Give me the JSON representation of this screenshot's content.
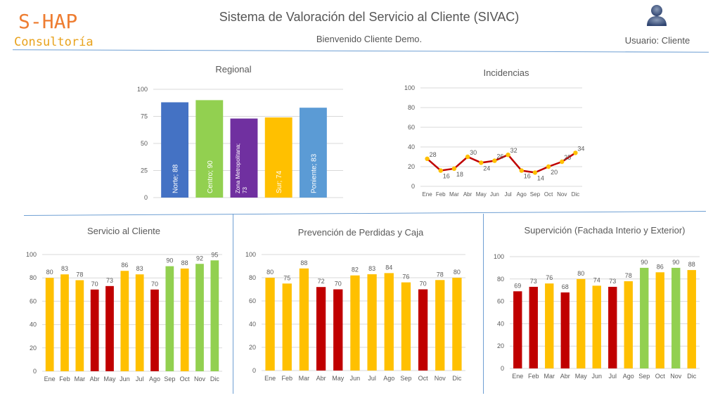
{
  "header": {
    "logo_main": "S-HAP",
    "logo_sub": "Consultoría",
    "title": "Sistema de Valoración del Servicio al Cliente (SIVAC)",
    "welcome": "Bienvenido Cliente Demo.",
    "user_label": "Usuario: Cliente",
    "user_icon": "user-avatar-icon"
  },
  "colors": {
    "red": "#c00000",
    "yellow": "#ffc000",
    "green": "#92d050",
    "blue": "#4472c4",
    "lightblue": "#5b9bd5",
    "purple": "#7030a0",
    "line": "#c00000",
    "marker": "#ffc000",
    "divider": "#6e9fd3"
  },
  "chart_data": [
    {
      "id": "regional",
      "type": "bar",
      "title": "Regional",
      "categories": [
        "Norte",
        "Centro",
        "Zona Metropolitana",
        "Sur",
        "Poniente"
      ],
      "values": [
        88,
        90,
        73,
        74,
        83
      ],
      "bar_labels": [
        "Norte; 88",
        "Centro; 90",
        "Zona Metropolitana; 73",
        "Sur; 74",
        "Poniente; 83"
      ],
      "bar_colors": [
        "blue",
        "green",
        "purple",
        "yellow",
        "lightblue"
      ],
      "ylim": [
        0,
        100
      ],
      "yticks": [
        0,
        25,
        50,
        75,
        100
      ],
      "grid": true
    },
    {
      "id": "incidencias",
      "type": "line",
      "title": "Incidencias",
      "categories": [
        "Ene",
        "Feb",
        "Mar",
        "Abr",
        "May",
        "Jun",
        "Jul",
        "Ago",
        "Sep",
        "Oct",
        "Nov",
        "Dic"
      ],
      "values": [
        28,
        16,
        18,
        30,
        24,
        26,
        32,
        16,
        14,
        20,
        25,
        34
      ],
      "ylim": [
        0,
        100
      ],
      "yticks": [
        0,
        20,
        40,
        60,
        80,
        100
      ],
      "grid": true
    },
    {
      "id": "servicio",
      "type": "bar",
      "title": "Servicio al Cliente",
      "categories": [
        "Ene",
        "Feb",
        "Mar",
        "Abr",
        "May",
        "Jun",
        "Jul",
        "Ago",
        "Sep",
        "Oct",
        "Nov",
        "Dic"
      ],
      "values": [
        80,
        83,
        78,
        70,
        73,
        86,
        83,
        70,
        90,
        88,
        92,
        95
      ],
      "bar_colors": [
        "yellow",
        "yellow",
        "yellow",
        "red",
        "red",
        "yellow",
        "yellow",
        "red",
        "green",
        "yellow",
        "green",
        "green"
      ],
      "ylim": [
        0,
        100
      ],
      "yticks": [
        0,
        20,
        40,
        60,
        80,
        100
      ],
      "grid": true
    },
    {
      "id": "prevencion",
      "type": "bar",
      "title": "Prevención de Perdidas y Caja",
      "categories": [
        "Ene",
        "Feb",
        "Mar",
        "Abr",
        "May",
        "Jun",
        "Jul",
        "Ago",
        "Sep",
        "Oct",
        "Nov",
        "Dic"
      ],
      "values": [
        80,
        75,
        88,
        72,
        70,
        82,
        83,
        84,
        76,
        70,
        78,
        80
      ],
      "bar_colors": [
        "yellow",
        "yellow",
        "yellow",
        "red",
        "red",
        "yellow",
        "yellow",
        "yellow",
        "yellow",
        "red",
        "yellow",
        "yellow"
      ],
      "ylim": [
        0,
        100
      ],
      "yticks": [
        0,
        20,
        40,
        60,
        80,
        100
      ],
      "grid": true
    },
    {
      "id": "supervicion",
      "type": "bar",
      "title": "Supervición (Fachada Interio y Exterior)",
      "categories": [
        "Ene",
        "Feb",
        "Mar",
        "Abr",
        "May",
        "Jun",
        "Jul",
        "Ago",
        "Sep",
        "Oct",
        "Nov",
        "Dic"
      ],
      "values": [
        69,
        73,
        76,
        68,
        80,
        74,
        73,
        78,
        90,
        86,
        90,
        88
      ],
      "bar_colors": [
        "red",
        "red",
        "yellow",
        "red",
        "yellow",
        "yellow",
        "red",
        "yellow",
        "green",
        "yellow",
        "green",
        "yellow"
      ],
      "ylim": [
        0,
        100
      ],
      "yticks": [
        0,
        20,
        40,
        60,
        80,
        100
      ],
      "grid": true
    }
  ]
}
